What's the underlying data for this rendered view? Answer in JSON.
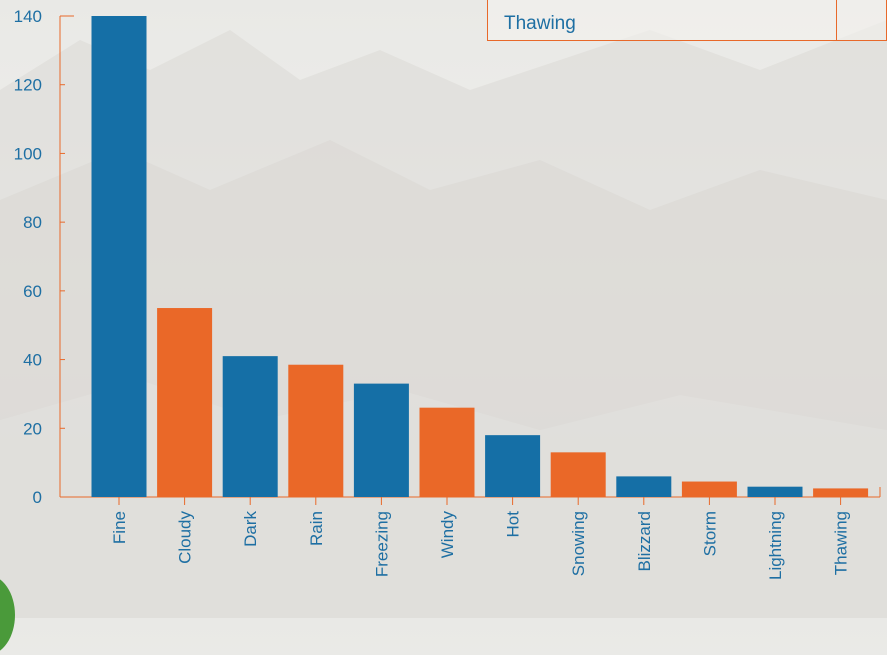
{
  "chart_data": {
    "type": "bar",
    "categories": [
      "Fine",
      "Cloudy",
      "Dark",
      "Rain",
      "Freezing",
      "Windy",
      "Hot",
      "Snowing",
      "Blizzard",
      "Storm",
      "Lightning",
      "Thawing"
    ],
    "values": [
      140,
      55,
      41,
      38.5,
      33,
      26,
      18,
      13,
      6,
      4.5,
      3,
      2.5
    ],
    "yticks": [
      "0",
      "20",
      "40",
      "60",
      "80",
      "100",
      "120",
      "140"
    ],
    "ylim": [
      0,
      140
    ],
    "title": "",
    "xlabel": "",
    "ylabel": "",
    "colors": [
      "#156fa6",
      "#ea6828"
    ],
    "axis_color": "#e8692a",
    "label_color": "#1e6fa3",
    "grid": false
  },
  "legend": {
    "label": "Thawing"
  }
}
